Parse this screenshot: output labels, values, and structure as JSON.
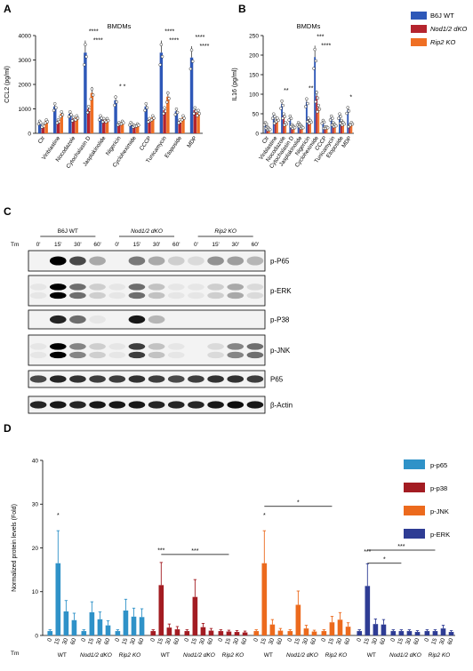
{
  "panels": {
    "A": "A",
    "B": "B",
    "C": "C",
    "D": "D"
  },
  "colors": {
    "wt": "#2e58b8",
    "nod": "#b5242e",
    "rip": "#ef6f24",
    "p65": "#2f92c8",
    "p38": "#a31c22",
    "jnk": "#ec6a1d",
    "erk": "#2e3c94"
  },
  "legend_ab": [
    "B6J WT",
    "Nod1/2 dKO",
    "Rip2 KO"
  ],
  "chart_data": [
    {
      "id": "A",
      "type": "bar",
      "title": "BMDMs",
      "ylabel": "CCL2 (pg/ml)",
      "ylim": [
        0,
        4000
      ],
      "yticks": [
        0,
        1000,
        2000,
        3000,
        4000
      ],
      "categories": [
        "Ctr",
        "Vinblastine",
        "Nocodazole",
        "Cytochalasin D",
        "Jasplakinolide",
        "Nigericin",
        "Cycloheximide",
        "CCCP",
        "Tunicamycin",
        "Etoposide",
        "MDP"
      ],
      "series": [
        {
          "name": "B6J WT",
          "values": [
            450,
            1100,
            800,
            3300,
            650,
            1350,
            400,
            1100,
            3300,
            900,
            3100
          ]
        },
        {
          "name": "Nod1/2 dKO",
          "values": [
            300,
            500,
            600,
            1000,
            550,
            400,
            300,
            550,
            950,
            500,
            950
          ]
        },
        {
          "name": "Rip2 KO",
          "values": [
            500,
            800,
            650,
            1650,
            550,
            450,
            350,
            650,
            1500,
            650,
            850
          ]
        }
      ],
      "annotations": [
        {
          "category": "Cytochalasin D",
          "text": "****"
        },
        {
          "category": "Cytochalasin D",
          "text": "****"
        },
        {
          "category": "Nigericin",
          "text": "* *"
        },
        {
          "category": "Tunicamycin",
          "text": "****"
        },
        {
          "category": "Tunicamycin",
          "text": "****"
        },
        {
          "category": "MDP",
          "text": "****"
        },
        {
          "category": "MDP",
          "text": "****"
        }
      ]
    },
    {
      "id": "B",
      "type": "bar",
      "title": "BMDMs",
      "ylabel": "IL16 (pg/ml)",
      "ylim": [
        0,
        250
      ],
      "yticks": [
        0,
        50,
        100,
        150,
        200,
        250
      ],
      "categories": [
        "Ctr",
        "Vinblastine",
        "Nocodazole",
        "Cytochalasin D",
        "Jasplakinolide",
        "Nigericin",
        "Cycloheximide",
        "CCCP",
        "Tunicamycin",
        "Etoposide",
        "MDP"
      ],
      "series": [
        {
          "name": "B6J WT",
          "values": [
            25,
            45,
            75,
            40,
            25,
            80,
            195,
            30,
            40,
            45,
            60
          ]
        },
        {
          "name": "Nod1/2 dKO",
          "values": [
            15,
            30,
            45,
            20,
            20,
            35,
            95,
            15,
            25,
            30,
            20
          ]
        },
        {
          "name": "Rip2 KO",
          "values": [
            10,
            35,
            25,
            15,
            15,
            30,
            65,
            15,
            20,
            25,
            25
          ]
        }
      ],
      "annotations": [
        {
          "category": "Nocodazole",
          "text": "**"
        },
        {
          "category": "Nigericin",
          "text": "**"
        },
        {
          "category": "Cycloheximide",
          "text": "***"
        },
        {
          "category": "Cycloheximide",
          "text": "****"
        },
        {
          "category": "MDP",
          "text": "*"
        }
      ]
    },
    {
      "id": "D",
      "type": "bar",
      "ylabel": "Normalized protein levels (Fold)",
      "ylim": [
        0,
        40
      ],
      "yticks": [
        0,
        10,
        20,
        30,
        40
      ],
      "group_labels": [
        "WT",
        "Nod1/2 dKO",
        "Rip2 KO"
      ],
      "timepoint_labels": [
        "0",
        "15",
        "30",
        "60"
      ],
      "tm_label": "Tm",
      "series": [
        {
          "name": "p-p65",
          "values": [
            1,
            16.5,
            5.5,
            3.5,
            1,
            5.3,
            3.7,
            2.3,
            1,
            5.7,
            4.3,
            4.2
          ]
        },
        {
          "name": "p-p38",
          "values": [
            1,
            11.5,
            1.8,
            1.4,
            1,
            8.8,
            1.9,
            1.1,
            1,
            0.9,
            0.8,
            0.7
          ]
        },
        {
          "name": "p-JNK",
          "values": [
            1,
            16.5,
            2.5,
            1.1,
            1,
            7,
            1.6,
            0.9,
            1,
            3,
            3.6,
            2
          ]
        },
        {
          "name": "p-ERK",
          "values": [
            1,
            11.3,
            2.6,
            2.5,
            1,
            1,
            1,
            0.8,
            1,
            1,
            1.6,
            0.8
          ]
        }
      ],
      "stars": [
        {
          "series": "p-p65",
          "text": "*"
        },
        {
          "series": "p-p38",
          "text": "***"
        },
        {
          "series": "p-JNK",
          "text": "*"
        },
        {
          "series": "p-ERK",
          "text": "***"
        }
      ],
      "brackets": [
        {
          "series": "p-p38",
          "text": "***"
        },
        {
          "series": "p-JNK",
          "text": "*"
        },
        {
          "series": "p-ERK",
          "text": "*"
        },
        {
          "series": "p-ERK",
          "text": "***"
        }
      ]
    }
  ],
  "blots": {
    "tm_label": "Tm",
    "groups": [
      "B6J WT",
      "Nod1/2 dKO",
      "Rip2 KO"
    ],
    "timepoints": [
      "0'",
      "15'",
      "30'",
      "60'"
    ],
    "rows": [
      {
        "label": "p-P65",
        "bands": [
          [
            0,
            1,
            0.7,
            0.3
          ],
          [
            0,
            0.5,
            0.3,
            0.15
          ],
          [
            0.1,
            0.4,
            0.35,
            0.25
          ]
        ]
      },
      {
        "label": "p-ERK",
        "bands": [
          [
            0.05,
            1,
            0.55,
            0.15
          ],
          [
            0.05,
            0.55,
            0.2,
            0.05
          ],
          [
            0.05,
            0.15,
            0.3,
            0.1
          ]
        ]
      },
      {
        "label": "p-P38",
        "bands": [
          [
            0,
            0.85,
            0.55,
            0.05
          ],
          [
            0,
            0.9,
            0.25,
            0
          ],
          [
            0,
            0,
            0,
            0
          ]
        ]
      },
      {
        "label": "p-JNK",
        "bands": [
          [
            0.05,
            1,
            0.45,
            0.15
          ],
          [
            0.05,
            0.75,
            0.2,
            0.05
          ],
          [
            0,
            0.1,
            0.45,
            0.55
          ]
        ]
      },
      {
        "label": "P65",
        "bands": [
          [
            0.7,
            0.85,
            0.8,
            0.75
          ],
          [
            0.75,
            0.8,
            0.75,
            0.7
          ],
          [
            0.75,
            0.8,
            0.8,
            0.75
          ]
        ]
      },
      {
        "label": "β-Actin",
        "bands": [
          [
            0.85,
            0.9,
            0.85,
            0.9
          ],
          [
            0.9,
            0.9,
            0.85,
            0.85
          ],
          [
            0.85,
            0.9,
            0.95,
            0.9
          ]
        ]
      }
    ]
  }
}
